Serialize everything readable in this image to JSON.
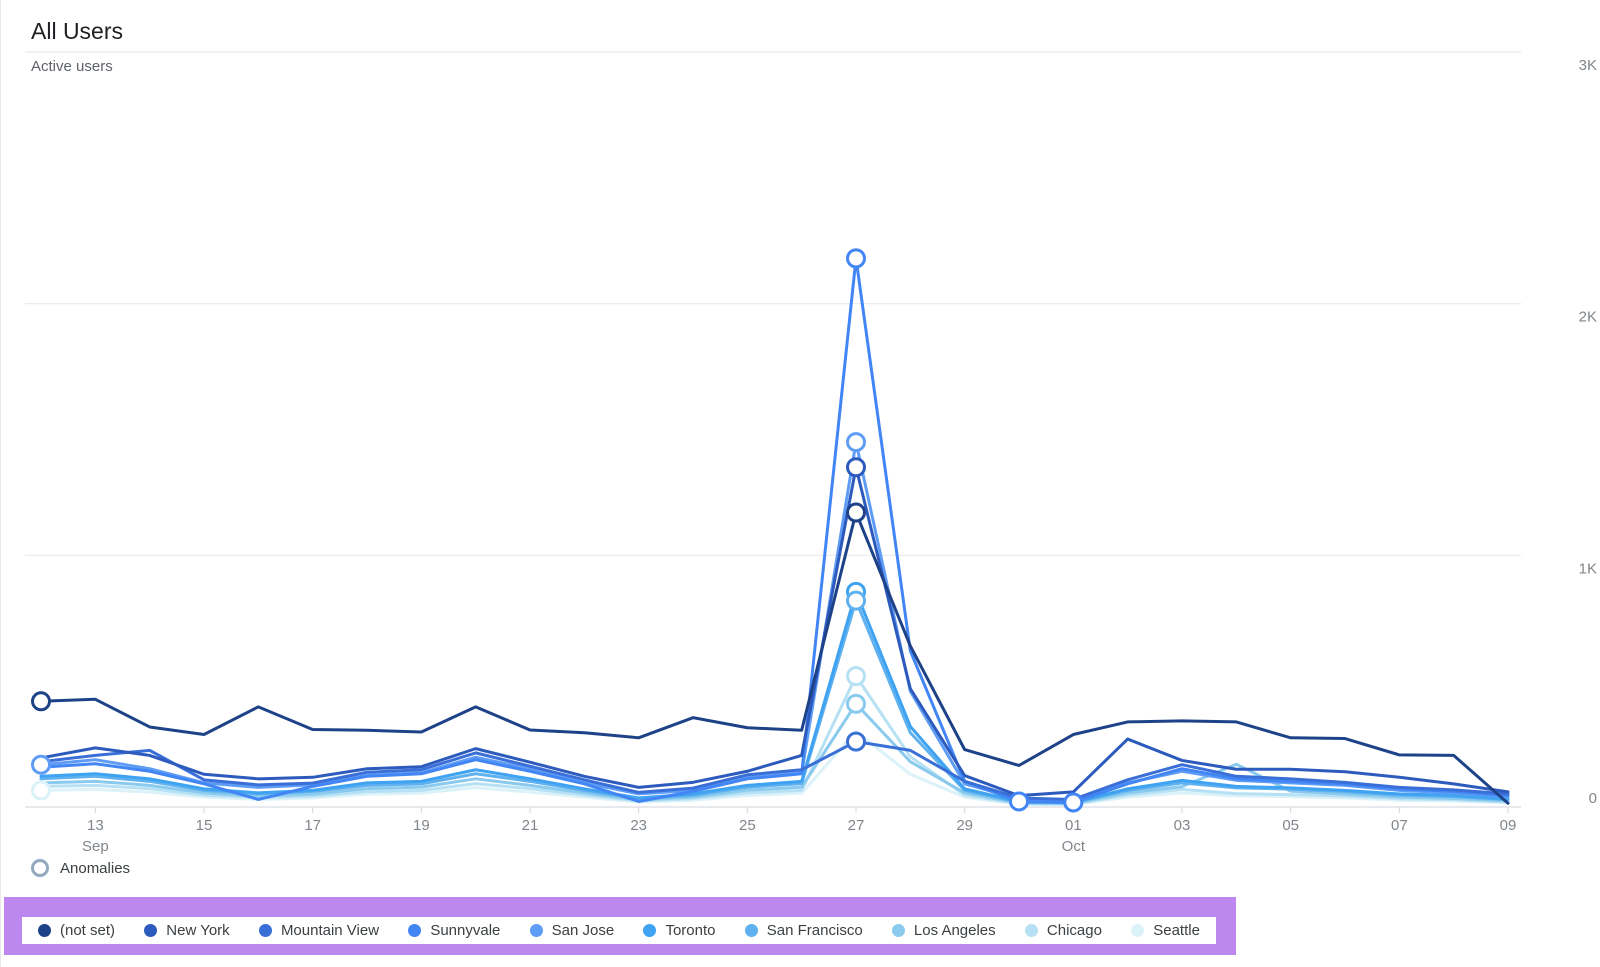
{
  "page": {
    "title": "All Users",
    "subtitle": "Active users",
    "anomalies_label": "Anomalies"
  },
  "colors": {
    "background": "#ffffff",
    "highlight_annotation": "#bc87ef",
    "legend_bar_background": "#ffffff",
    "grid": "#e9eaee",
    "axis": "#dadce0",
    "axis_text": "#80868b",
    "title_text": "#202124",
    "subtitle_text": "#5f6368",
    "legend_text": "#3c4043",
    "anomaly_legend_ring": "#93a9c1"
  },
  "chart_data": {
    "type": "line",
    "title": "All Users",
    "ylabel": "Active users",
    "ylim": [
      0,
      3000
    ],
    "grid": "horizontal",
    "legend_position": "bottom",
    "yticks": [
      {
        "value": 3000,
        "label": "3K"
      },
      {
        "value": 2000,
        "label": "2K"
      },
      {
        "value": 1000,
        "label": "1K"
      },
      {
        "value": 0,
        "label": "0"
      }
    ],
    "x_dates": [
      "Sep 12",
      "Sep 13",
      "Sep 14",
      "Sep 15",
      "Sep 16",
      "Sep 17",
      "Sep 18",
      "Sep 19",
      "Sep 20",
      "Sep 21",
      "Sep 22",
      "Sep 23",
      "Sep 24",
      "Sep 25",
      "Sep 26",
      "Sep 27",
      "Sep 28",
      "Sep 29",
      "Sep 30",
      "Oct 1",
      "Oct 2",
      "Oct 3",
      "Oct 4",
      "Oct 5",
      "Oct 6",
      "Oct 7",
      "Oct 8",
      "Oct 9"
    ],
    "xticks": [
      {
        "index": 1,
        "label": "13",
        "sub": "Sep"
      },
      {
        "index": 3,
        "label": "15"
      },
      {
        "index": 5,
        "label": "17"
      },
      {
        "index": 7,
        "label": "19"
      },
      {
        "index": 9,
        "label": "21"
      },
      {
        "index": 11,
        "label": "23"
      },
      {
        "index": 13,
        "label": "25"
      },
      {
        "index": 15,
        "label": "27"
      },
      {
        "index": 17,
        "label": "29"
      },
      {
        "index": 19,
        "label": "01",
        "sub": "Oct"
      },
      {
        "index": 21,
        "label": "03"
      },
      {
        "index": 23,
        "label": "05"
      },
      {
        "index": 25,
        "label": "07"
      },
      {
        "index": 27,
        "label": "09"
      }
    ],
    "series": [
      {
        "name": "(not set)",
        "color": "#1e4288",
        "values": [
          420,
          428,
          318,
          288,
          398,
          308,
          305,
          298,
          398,
          306,
          295,
          275,
          355,
          315,
          305,
          1170,
          640,
          228,
          165,
          288,
          338,
          342,
          338,
          275,
          272,
          207,
          205,
          15
        ]
      },
      {
        "name": "New York",
        "color": "#2d5bbd",
        "values": [
          195,
          235,
          205,
          130,
          112,
          118,
          152,
          160,
          232,
          178,
          122,
          78,
          98,
          142,
          205,
          1350,
          470,
          125,
          45,
          60,
          270,
          185,
          150,
          150,
          140,
          118,
          92,
          60
        ]
      },
      {
        "name": "Mountain View",
        "color": "#3a6fd8",
        "values": [
          180,
          205,
          225,
          108,
          88,
          95,
          138,
          148,
          215,
          162,
          108,
          58,
          75,
          128,
          148,
          260,
          225,
          102,
          36,
          30,
          108,
          168,
          122,
          112,
          98,
          78,
          68,
          52
        ]
      },
      {
        "name": "Sunnyvale",
        "color": "#4285f4",
        "values": [
          158,
          172,
          142,
          92,
          30,
          82,
          122,
          132,
          188,
          142,
          92,
          22,
          62,
          112,
          132,
          2180,
          620,
          102,
          22,
          18,
          92,
          152,
          112,
          102,
          92,
          72,
          62,
          45
        ]
      },
      {
        "name": "San Jose",
        "color": "#5e9cf6",
        "values": [
          168,
          188,
          152,
          96,
          78,
          88,
          126,
          136,
          198,
          152,
          96,
          52,
          66,
          118,
          136,
          1450,
          460,
          92,
          32,
          26,
          96,
          142,
          106,
          96,
          86,
          66,
          56,
          42
        ]
      },
      {
        "name": "Toronto",
        "color": "#3fa3f2",
        "values": [
          122,
          132,
          112,
          72,
          56,
          66,
          96,
          102,
          148,
          112,
          72,
          36,
          52,
          86,
          102,
          855,
          320,
          72,
          22,
          18,
          72,
          106,
          82,
          76,
          66,
          52,
          46,
          32
        ]
      },
      {
        "name": "San Francisco",
        "color": "#5fb1ef",
        "values": [
          112,
          122,
          102,
          66,
          52,
          62,
          86,
          92,
          132,
          102,
          66,
          33,
          46,
          79,
          93,
          820,
          295,
          66,
          19,
          17,
          66,
          96,
          76,
          71,
          61,
          47,
          41,
          29
        ]
      },
      {
        "name": "Los Angeles",
        "color": "#8acaee",
        "values": [
          96,
          102,
          86,
          56,
          43,
          51,
          73,
          79,
          112,
          86,
          56,
          28,
          39,
          67,
          79,
          410,
          180,
          56,
          16,
          14,
          56,
          81,
          170,
          63,
          51,
          39,
          34,
          24
        ]
      },
      {
        "name": "Chicago",
        "color": "#b6e1f4",
        "values": [
          82,
          86,
          73,
          47,
          37,
          43,
          61,
          66,
          93,
          73,
          47,
          24,
          33,
          56,
          66,
          520,
          200,
          47,
          13,
          12,
          47,
          70,
          53,
          49,
          43,
          33,
          29,
          20
        ]
      },
      {
        "name": "Seattle",
        "color": "#dbf2f9",
        "values": [
          66,
          70,
          59,
          39,
          30,
          36,
          51,
          55,
          77,
          59,
          39,
          20,
          27,
          46,
          55,
          300,
          130,
          39,
          11,
          10,
          39,
          56,
          44,
          41,
          36,
          27,
          24,
          17
        ]
      }
    ],
    "anomalies": [
      {
        "series": "(not set)",
        "index": 0,
        "date": "Sep 12"
      },
      {
        "series": "San Jose",
        "index": 0,
        "date": "Sep 12"
      },
      {
        "series": "Seattle",
        "index": 0,
        "date": "Sep 12"
      },
      {
        "series": "Sunnyvale",
        "index": 15,
        "date": "Sep 27"
      },
      {
        "series": "San Jose",
        "index": 15,
        "date": "Sep 27"
      },
      {
        "series": "New York",
        "index": 15,
        "date": "Sep 27"
      },
      {
        "series": "(not set)",
        "index": 15,
        "date": "Sep 27"
      },
      {
        "series": "Toronto",
        "index": 15,
        "date": "Sep 27"
      },
      {
        "series": "San Francisco",
        "index": 15,
        "date": "Sep 27"
      },
      {
        "series": "Chicago",
        "index": 15,
        "date": "Sep 27"
      },
      {
        "series": "Los Angeles",
        "index": 15,
        "date": "Sep 27"
      },
      {
        "series": "Mountain View",
        "index": 15,
        "date": "Sep 27"
      },
      {
        "series": "Sunnyvale",
        "index": 18,
        "date": "Sep 30"
      },
      {
        "series": "Sunnyvale",
        "index": 19,
        "date": "Oct 1"
      }
    ]
  }
}
